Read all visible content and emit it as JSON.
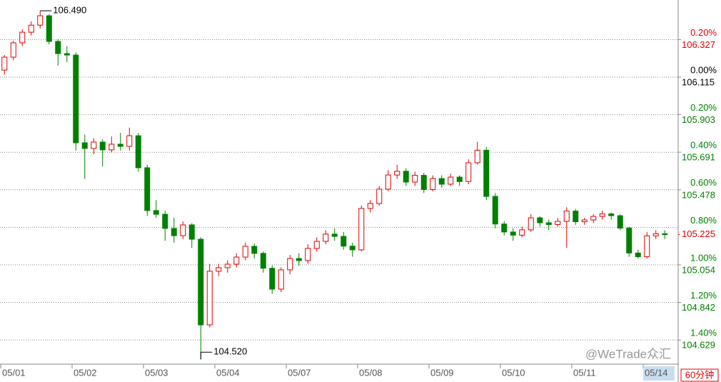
{
  "chart_data": {
    "type": "candlestick",
    "categories": [
      "05/01",
      null,
      null,
      null,
      null,
      null,
      null,
      null,
      "05/02",
      null,
      null,
      null,
      null,
      null,
      null,
      null,
      "05/03",
      null,
      null,
      null,
      null,
      null,
      null,
      null,
      "05/04",
      null,
      null,
      null,
      null,
      null,
      null,
      null,
      "05/07",
      null,
      null,
      null,
      null,
      null,
      null,
      null,
      "05/08",
      null,
      null,
      null,
      null,
      null,
      null,
      null,
      "05/09",
      null,
      null,
      null,
      null,
      null,
      null,
      null,
      "05/10",
      null,
      null,
      null,
      null,
      null,
      null,
      null,
      "05/11",
      null,
      null,
      null,
      null,
      null,
      null,
      null,
      "05/14",
      null,
      null
    ],
    "open": [
      106.155,
      106.228,
      106.309,
      106.369,
      106.409,
      106.462,
      106.317,
      106.248,
      106.24,
      105.744,
      105.712,
      105.748,
      105.704,
      105.736,
      105.724,
      105.784,
      105.603,
      105.361,
      105.34,
      105.26,
      105.219,
      105.28,
      105.199,
      104.715,
      105.018,
      105.038,
      105.058,
      105.098,
      105.159,
      105.119,
      105.035,
      104.917,
      105.026,
      105.09,
      105.078,
      105.147,
      105.187,
      105.228,
      105.215,
      105.16,
      105.139,
      105.373,
      105.401,
      105.482,
      105.562,
      105.583,
      105.522,
      105.56,
      105.48,
      105.542,
      105.51,
      105.55,
      105.525,
      105.631,
      105.702,
      105.441,
      105.285,
      105.24,
      105.222,
      105.252,
      105.32,
      105.292,
      105.282,
      105.3,
      105.358,
      105.298,
      105.308,
      105.328,
      105.342,
      105.332,
      105.262,
      105.121,
      105.1,
      105.218,
      105.23
    ],
    "high": [
      106.24,
      106.32,
      106.385,
      106.43,
      106.49,
      106.47,
      106.33,
      106.29,
      106.255,
      105.79,
      105.77,
      105.765,
      105.78,
      105.8,
      105.83,
      105.8,
      105.62,
      105.42,
      105.36,
      105.32,
      105.3,
      105.29,
      105.21,
      105.06,
      105.06,
      105.08,
      105.12,
      105.18,
      105.175,
      105.13,
      105.05,
      105.04,
      105.11,
      105.12,
      105.17,
      105.21,
      105.25,
      105.26,
      105.24,
      105.18,
      105.39,
      105.42,
      105.5,
      105.59,
      105.62,
      105.6,
      105.58,
      105.575,
      105.56,
      105.56,
      105.57,
      105.56,
      105.65,
      105.75,
      105.72,
      105.46,
      105.3,
      105.26,
      105.27,
      105.34,
      105.33,
      105.31,
      105.32,
      105.38,
      105.37,
      105.32,
      105.34,
      105.36,
      105.35,
      105.34,
      105.27,
      105.14,
      105.24,
      105.25,
      105.25
    ],
    "low": [
      106.13,
      106.21,
      106.29,
      106.35,
      106.39,
      106.3,
      106.18,
      106.2,
      105.7,
      105.54,
      105.68,
      105.61,
      105.69,
      105.7,
      105.7,
      105.58,
      105.33,
      105.32,
      105.19,
      105.18,
      105.2,
      105.15,
      104.52,
      104.7,
      104.99,
      105.01,
      105.04,
      105.08,
      105.09,
      105.01,
      104.89,
      104.9,
      105.0,
      105.05,
      105.06,
      105.13,
      105.17,
      105.19,
      105.14,
      105.1,
      105.13,
      105.35,
      105.39,
      105.47,
      105.54,
      105.5,
      105.5,
      105.46,
      105.47,
      105.49,
      105.5,
      105.5,
      105.51,
      105.62,
      105.42,
      105.26,
      105.22,
      105.19,
      105.21,
      105.24,
      105.27,
      105.25,
      105.27,
      105.15,
      105.28,
      105.28,
      105.29,
      105.31,
      105.31,
      105.25,
      105.1,
      105.09,
      105.09,
      105.2,
      105.2
    ],
    "close": [
      106.228,
      106.309,
      106.369,
      106.409,
      106.462,
      106.317,
      106.248,
      106.24,
      105.744,
      105.712,
      105.748,
      105.704,
      105.736,
      105.724,
      105.784,
      105.603,
      105.361,
      105.34,
      105.26,
      105.219,
      105.28,
      105.199,
      104.715,
      105.018,
      105.038,
      105.058,
      105.098,
      105.159,
      105.119,
      105.035,
      104.917,
      105.026,
      105.09,
      105.078,
      105.147,
      105.187,
      105.228,
      105.215,
      105.16,
      105.139,
      105.373,
      105.401,
      105.482,
      105.562,
      105.583,
      105.522,
      105.56,
      105.48,
      105.542,
      105.51,
      105.55,
      105.525,
      105.631,
      105.702,
      105.441,
      105.285,
      105.24,
      105.222,
      105.252,
      105.32,
      105.292,
      105.282,
      105.3,
      105.358,
      105.298,
      105.308,
      105.328,
      105.342,
      105.332,
      105.262,
      105.121,
      105.1,
      105.218,
      105.23,
      105.225
    ],
    "up_color": "#e00000",
    "down_color": "#008000",
    "ylim": [
      104.493,
      106.551
    ],
    "yticks": [
      106.327,
      106.115,
      105.903,
      105.691,
      105.478,
      105.054,
      104.842,
      104.629
    ],
    "y2lim": [
      -1.529,
      0.411
    ],
    "y2ticks": [
      {
        "value": 0.2,
        "label": "0.20%"
      },
      {
        "value": 0,
        "label": "0.00%"
      },
      {
        "value": -0.2,
        "label": "0.20%"
      },
      {
        "value": -0.4,
        "label": "0.40%"
      },
      {
        "value": -0.6,
        "label": "0.60%"
      },
      {
        "value": -0.8,
        "label": "0.80%"
      },
      {
        "value": -1.0,
        "label": "1.00%"
      },
      {
        "value": -1.2,
        "label": "1.20%"
      },
      {
        "value": -1.4,
        "label": "1.40%"
      }
    ],
    "grid": true,
    "max_label": "106.490",
    "min_label": "104.520",
    "interval": "60分钟",
    "watermark": "@WeTrade众汇"
  }
}
